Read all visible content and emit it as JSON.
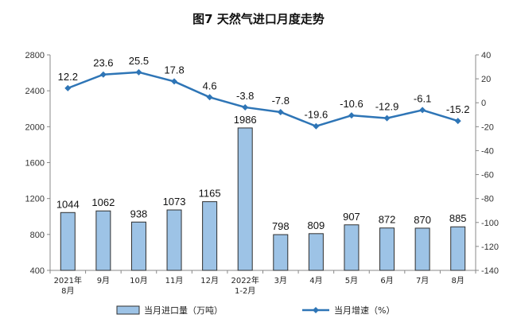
{
  "chart_data": {
    "type": "bar",
    "title": "图7  天然气进口月度走势",
    "categories": [
      [
        "2021年",
        "8月"
      ],
      [
        "9月"
      ],
      [
        "10月"
      ],
      [
        "11月"
      ],
      [
        "12月"
      ],
      [
        "2022年",
        "1-2月"
      ],
      [
        "3月"
      ],
      [
        "4月"
      ],
      [
        "5月"
      ],
      [
        "6月"
      ],
      [
        "7月"
      ],
      [
        "8月"
      ]
    ],
    "series": [
      {
        "name": "当月进口量（万吨）",
        "type": "bar",
        "axis": "left",
        "color": "#9DC3E6",
        "values": [
          1044,
          1062,
          938,
          1073,
          1165,
          1986,
          798,
          809,
          907,
          872,
          870,
          885
        ]
      },
      {
        "name": "当月增速（%）",
        "type": "line",
        "axis": "right",
        "color": "#2E75B6",
        "values": [
          12.2,
          23.6,
          25.5,
          17.8,
          4.6,
          -3.8,
          -7.8,
          -19.6,
          -10.6,
          -12.9,
          -6.1,
          -15.2
        ]
      }
    ],
    "y_left": {
      "min": 400,
      "max": 2800,
      "ticks": [
        400,
        800,
        1200,
        1600,
        2000,
        2400,
        2800
      ]
    },
    "y_right": {
      "min": -140,
      "max": 40,
      "ticks": [
        40,
        20,
        0,
        -20,
        -40,
        -60,
        -80,
        -100,
        -120,
        -140
      ]
    },
    "grid": false,
    "legend": "bottom"
  }
}
